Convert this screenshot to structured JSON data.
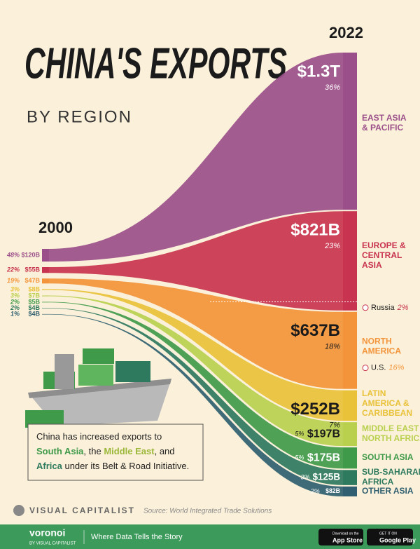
{
  "chart_data": {
    "type": "sankey",
    "title": "CHINA'S EXPORTS",
    "subtitle": "BY REGION",
    "years": [
      "2000",
      "2022"
    ],
    "series": [
      {
        "name": "EAST ASIA & PACIFIC",
        "color": "#9a4f8a",
        "values": [
          120,
          1300
        ],
        "value_labels": [
          "$120B",
          "$1.3T"
        ],
        "shares": [
          48,
          36
        ],
        "share_labels": [
          "48%",
          "36%"
        ]
      },
      {
        "name": "EUROPE & CENTRAL ASIA",
        "color": "#c8344f",
        "values": [
          55,
          821
        ],
        "value_labels": [
          "$55B",
          "$821B"
        ],
        "shares": [
          22,
          23
        ],
        "share_labels": [
          "22%",
          "23%"
        ]
      },
      {
        "name": "NORTH AMERICA",
        "color": "#f3943a",
        "values": [
          47,
          637
        ],
        "value_labels": [
          "$47B",
          "$637B"
        ],
        "shares": [
          19,
          18
        ],
        "share_labels": [
          "19%",
          "18%"
        ]
      },
      {
        "name": "LATIN AMERICA & CARIBBEAN",
        "color": "#e9c23a",
        "values": [
          8,
          252
        ],
        "value_labels": [
          "$8B",
          "$252B"
        ],
        "shares": [
          3,
          7
        ],
        "share_labels": [
          "3%",
          "7%"
        ]
      },
      {
        "name": "MIDDLE EAST & NORTH AFRICA",
        "color": "#b9d04e",
        "values": [
          7,
          197
        ],
        "value_labels": [
          "$7B",
          "$197B"
        ],
        "shares": [
          3,
          5
        ],
        "share_labels": [
          "3%",
          "5%"
        ]
      },
      {
        "name": "SOUTH ASIA",
        "color": "#3f9a4a",
        "values": [
          5,
          175
        ],
        "value_labels": [
          "$5B",
          "$175B"
        ],
        "shares": [
          2,
          5
        ],
        "share_labels": [
          "2%",
          "5%"
        ]
      },
      {
        "name": "SUB-SAHARAN AFRICA",
        "color": "#2e7a5f",
        "values": [
          4,
          125
        ],
        "value_labels": [
          "$4B",
          "$125B"
        ],
        "shares": [
          2,
          3
        ],
        "share_labels": [
          "2%",
          "3%"
        ]
      },
      {
        "name": "OTHER ASIA",
        "color": "#2f5f70",
        "values": [
          4,
          82
        ],
        "value_labels": [
          "$4B",
          "$82B"
        ],
        "shares": [
          1,
          2
        ],
        "share_labels": [
          "1%",
          "2%"
        ]
      }
    ],
    "notes": [
      {
        "series": 1,
        "name": "Russia",
        "share": 2,
        "share_label": "2%"
      },
      {
        "series": 2,
        "name": "U.S.",
        "share": 16,
        "share_label": "16%"
      }
    ],
    "callout": [
      "China has increased exports to",
      "South Asia",
      ", the ",
      "Middle East",
      ", and",
      "Africa",
      " under its Belt & Road Initiative."
    ],
    "brand": "VISUAL CAPITALIST",
    "source": "Source: World Integrated Trade Solutions"
  },
  "footer": {
    "logo": "voronoi",
    "logo_sub": "BY VISUAL CAPITALIST",
    "tagline": "Where Data Tells the Story",
    "app_store": [
      "Download on the",
      "App Store"
    ],
    "google_play": [
      "GET IT ON",
      "Google Play"
    ]
  }
}
